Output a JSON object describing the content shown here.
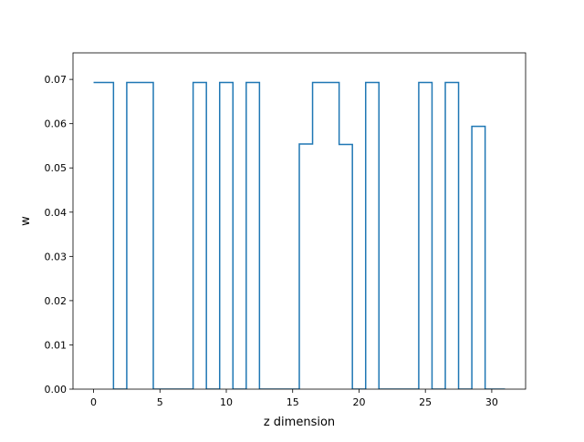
{
  "chart_data": {
    "type": "line",
    "drawstyle": "steps-mid",
    "xlabel": "z dimension",
    "ylabel": "w",
    "xlim": [
      -1.55,
      32.55
    ],
    "ylim": [
      0.0,
      0.076
    ],
    "xticks": [
      0,
      5,
      10,
      15,
      20,
      25,
      30
    ],
    "xtick_labels": [
      "0",
      "5",
      "10",
      "15",
      "20",
      "25",
      "30"
    ],
    "yticks": [
      0.0,
      0.01,
      0.02,
      0.03,
      0.04,
      0.05,
      0.06,
      0.07
    ],
    "ytick_labels": [
      "0.00",
      "0.01",
      "0.02",
      "0.03",
      "0.04",
      "0.05",
      "0.06",
      "0.07"
    ],
    "grid": false,
    "series": [
      {
        "color": "#1f77b4",
        "x": [
          0,
          1,
          2,
          3,
          4,
          5,
          6,
          7,
          8,
          9,
          10,
          11,
          12,
          13,
          14,
          15,
          16,
          17,
          18,
          19,
          20,
          21,
          22,
          23,
          24,
          25,
          26,
          27,
          28,
          29,
          30,
          31
        ],
        "y": [
          0.0693,
          0.0693,
          0.0,
          0.0693,
          0.0693,
          0.0,
          0.0,
          0.0,
          0.0693,
          0.0,
          0.0693,
          0.0,
          0.0693,
          0.0,
          0.0,
          0.0,
          0.0554,
          0.0693,
          0.0693,
          0.0553,
          0.0,
          0.0693,
          0.0,
          0.0,
          0.0,
          0.0693,
          0.0,
          0.0693,
          0.0,
          0.0594,
          0.0,
          0.0
        ]
      }
    ]
  }
}
